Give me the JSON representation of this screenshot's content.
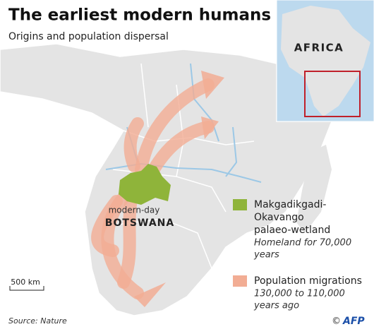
{
  "header": {
    "title": "The earliest modern humans",
    "subtitle": "Origins and population dispersal"
  },
  "inset": {
    "label": "AFRICA"
  },
  "map": {
    "place_top": "modern-day",
    "place": "BOTSWANA",
    "scale": "500 km"
  },
  "legend": [
    {
      "lines": [
        "Makgadikgadi-",
        "Okavango",
        "palaeo-wetland"
      ],
      "note": [
        "Homeland for 70,000",
        "years"
      ]
    },
    {
      "lines": [
        "Population migrations"
      ],
      "note": [
        "130,000 to 110,000",
        "years ago"
      ]
    }
  ],
  "footer": {
    "source": "Source: Nature",
    "credit_symbol": "©",
    "credit": "AFP"
  }
}
